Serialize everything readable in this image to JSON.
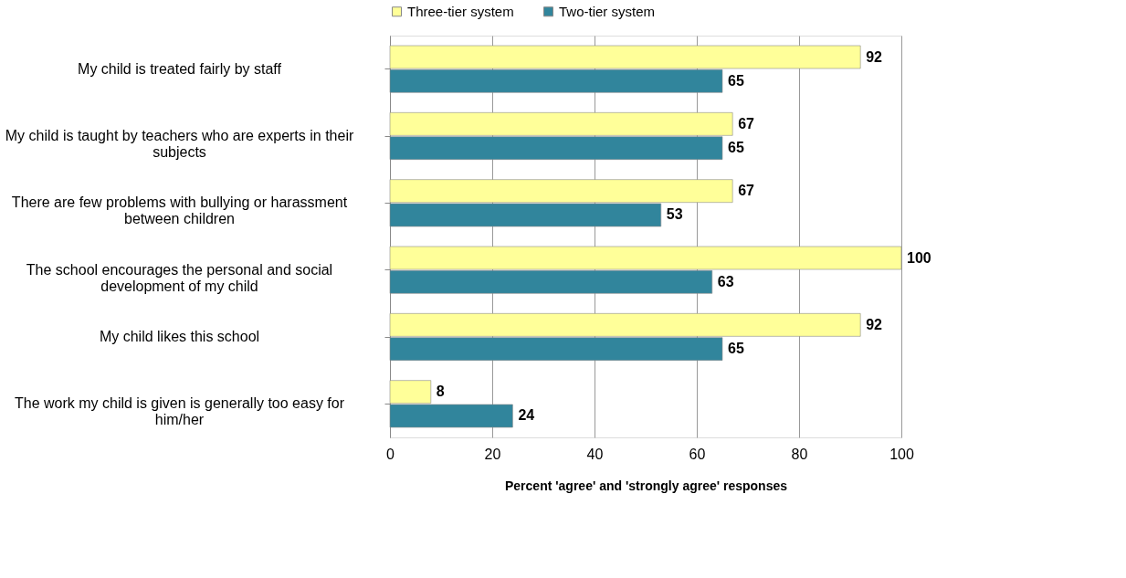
{
  "chart_data": {
    "type": "bar",
    "orientation": "horizontal",
    "xlabel": "Percent 'agree' and 'strongly agree' responses",
    "categories": [
      "My child is treated fairly by staff",
      "My child is taught by teachers who are experts in their subjects",
      "There are few problems with bullying or harassment between children",
      "The school encourages the personal and social development of my child",
      "My child likes this school",
      "The work my child is given is generally too easy for him/her"
    ],
    "series": [
      {
        "name": "Three-tier system",
        "color": "#ffff99",
        "values": [
          92,
          67,
          67,
          100,
          92,
          8
        ]
      },
      {
        "name": "Two-tier system",
        "color": "#31859c",
        "values": [
          65,
          65,
          53,
          63,
          65,
          24
        ]
      }
    ],
    "xlim": [
      0,
      100
    ],
    "xticks": [
      0,
      20,
      40,
      60,
      80,
      100
    ],
    "grid": "x",
    "legend": "top",
    "data_labels": true
  }
}
